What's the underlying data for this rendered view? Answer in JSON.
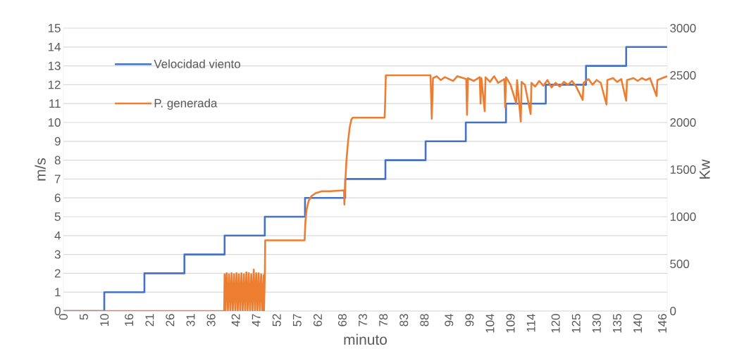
{
  "chart_data": {
    "type": "step",
    "xlabel": "minuto",
    "ylabel": "m/s",
    "y2label": "Kw",
    "xlim": [
      0,
      147.2
    ],
    "ylim": [
      0,
      15
    ],
    "y2lim": [
      0,
      3000
    ],
    "xticks": [
      0,
      5,
      10,
      16,
      21,
      26,
      31,
      36,
      42,
      47,
      52,
      57,
      62,
      68,
      73,
      78,
      83,
      88,
      94,
      99,
      104,
      109,
      114,
      120,
      125,
      130,
      135,
      140,
      146
    ],
    "yticks": [
      0,
      1,
      2,
      3,
      4,
      5,
      6,
      7,
      8,
      9,
      10,
      11,
      12,
      13,
      14,
      15
    ],
    "y2ticks": [
      0,
      500,
      1000,
      1500,
      2000,
      2500,
      3000
    ],
    "grid": "y",
    "legend": "top left",
    "series": [
      {
        "name": "Velocidad viento",
        "color": "#4472c4",
        "x": [
          0,
          9.96,
          19.75,
          29.5,
          39.3,
          49.1,
          58.9,
          68.7,
          78.5,
          88.3,
          98.1,
          107.9,
          117.6,
          127.4,
          137.2,
          147.2
        ],
        "values": [
          0,
          1,
          2,
          3,
          4,
          5,
          6,
          7,
          8,
          9,
          10,
          11,
          12,
          13,
          14,
          14
        ]
      },
      {
        "name": "P. generada",
        "type": "line",
        "axis": "y2",
        "color": "#ed7d31",
        "x": [
          0,
          39.2,
          39.3,
          39.5,
          39.8,
          40.1,
          40.4,
          40.7,
          41.0,
          41.3,
          41.6,
          41.9,
          42.2,
          42.5,
          42.8,
          43.1,
          43.4,
          43.7,
          44.0,
          44.3,
          44.6,
          44.9,
          45.2,
          45.5,
          45.8,
          46.1,
          46.4,
          46.7,
          47.0,
          47.3,
          47.6,
          47.9,
          48.2,
          48.5,
          48.8,
          48.9,
          49.1,
          49.2,
          58.8,
          59.0,
          59.3,
          59.8,
          60.5,
          61.5,
          63,
          65,
          68.4,
          68.5,
          68.7,
          69.0,
          69.4,
          69.8,
          70.2,
          70.5,
          78.3,
          78.4,
          78.6,
          89.5,
          89.8,
          90.1,
          91,
          92,
          93,
          95,
          96,
          98.2,
          98.4,
          98.6,
          100,
          101.5,
          101.7,
          101.9,
          102.7,
          102.9,
          104,
          105,
          106,
          107.5,
          107.7,
          107.9,
          109,
          110.4,
          110.6,
          111.5,
          111.7,
          112.5,
          113.9,
          114.1,
          115,
          116,
          117,
          118,
          119,
          120,
          121,
          122,
          123,
          124,
          125,
          126.6,
          126.8,
          128,
          129,
          130,
          131,
          132.4,
          132.6,
          134,
          135,
          136,
          137.2,
          137.4,
          139,
          140,
          141,
          142,
          143,
          144.6,
          144.8,
          146,
          147.2
        ],
        "values": [
          0,
          0,
          390,
          0,
          400,
          0,
          390,
          0,
          400,
          0,
          390,
          0,
          400,
          0,
          390,
          0,
          400,
          0,
          390,
          0,
          410,
          0,
          400,
          0,
          390,
          0,
          440,
          0,
          400,
          0,
          400,
          0,
          390,
          0,
          380,
          0,
          380,
          750,
          750,
          950,
          1080,
          1170,
          1220,
          1250,
          1270,
          1270,
          1280,
          1130,
          1350,
          1600,
          1800,
          1950,
          2030,
          2050,
          2050,
          2150,
          2500,
          2500,
          2040,
          2470,
          2490,
          2450,
          2480,
          2440,
          2490,
          2460,
          2080,
          2470,
          2440,
          2480,
          2200,
          2470,
          2120,
          2480,
          2430,
          2490,
          2420,
          2460,
          2160,
          2480,
          2400,
          2200,
          2450,
          2010,
          2430,
          2400,
          2090,
          2420,
          2380,
          2440,
          2390,
          2450,
          2370,
          2420,
          2380,
          2430,
          2400,
          2440,
          2380,
          2240,
          2420,
          2460,
          2400,
          2450,
          2420,
          2190,
          2450,
          2470,
          2430,
          2460,
          2230,
          2450,
          2470,
          2440,
          2470,
          2450,
          2470,
          2280,
          2450,
          2470,
          2490
        ]
      }
    ]
  }
}
